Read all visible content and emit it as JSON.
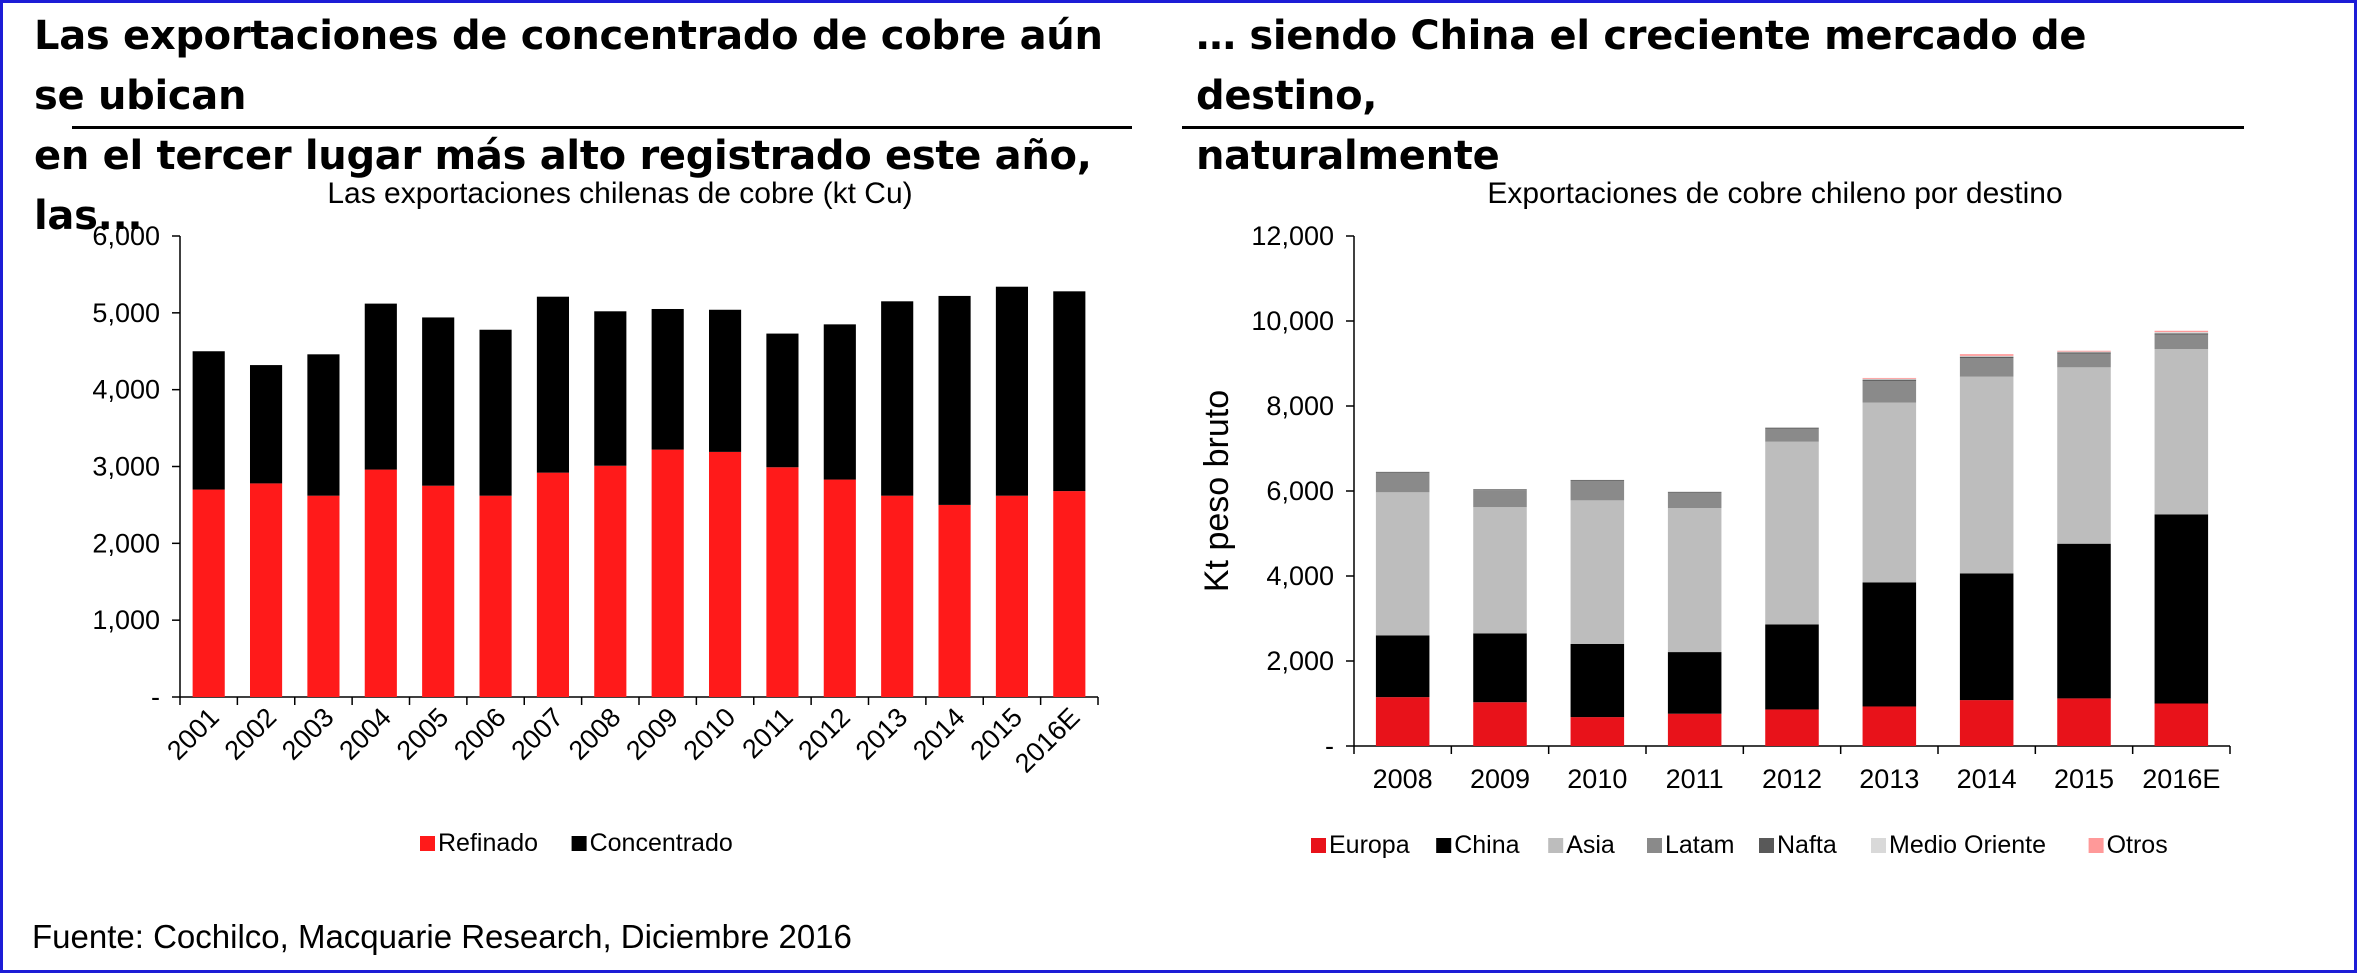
{
  "colors": {
    "frame": "#1c1cd6",
    "refinado": "#ff1a1a",
    "concentrado": "#000000",
    "europa": "#e8121a",
    "china": "#000000",
    "asia": "#bdbdbd",
    "latam": "#8a8a8a",
    "nafta": "#595959",
    "medio_oriente": "#d9d9d9",
    "otros": "#ff9999"
  },
  "left_panel": {
    "headline_line1": "Las exportaciones de concentrado de cobre aún se ubican",
    "headline_line2": "en el tercer lugar más alto registrado este año, las..."
  },
  "right_panel": {
    "headline_line1": "… siendo China el creciente mercado de destino,",
    "headline_line2": "naturalmente"
  },
  "footer": {
    "source": "Fuente: Cochilco, Macquarie Research, Diciembre 2016"
  },
  "chart_data": [
    {
      "type": "bar",
      "stacked": true,
      "title": "Las exportaciones chilenas de cobre (kt Cu)",
      "xlabel": "",
      "ylabel": "",
      "categories": [
        "2001",
        "2002",
        "2003",
        "2004",
        "2005",
        "2006",
        "2007",
        "2008",
        "2009",
        "2010",
        "2011",
        "2012",
        "2013",
        "2014",
        "2015",
        "2016E"
      ],
      "ylim": [
        0,
        6000
      ],
      "yticks": [
        "-",
        "1,000",
        "2,000",
        "3,000",
        "4,000",
        "5,000",
        "6,000"
      ],
      "grid": false,
      "legend_position": "bottom",
      "series": [
        {
          "name": "Refinado",
          "color": "#ff1a1a",
          "values": [
            2700,
            2780,
            2620,
            2960,
            2750,
            2620,
            2920,
            3010,
            3220,
            3190,
            2990,
            2830,
            2620,
            2500,
            2620,
            2680
          ]
        },
        {
          "name": "Concentrado",
          "color": "#000000",
          "values": [
            1800,
            1540,
            1840,
            2160,
            2190,
            2160,
            2290,
            2010,
            1830,
            1850,
            1740,
            2020,
            2530,
            2720,
            2720,
            2600
          ]
        }
      ]
    },
    {
      "type": "bar",
      "stacked": true,
      "title": "Exportaciones de cobre chileno por destino",
      "xlabel": "",
      "ylabel": "Kt peso bruto",
      "categories": [
        "2008",
        "2009",
        "2010",
        "2011",
        "2012",
        "2013",
        "2014",
        "2015",
        "2016E"
      ],
      "ylim": [
        0,
        12000
      ],
      "yticks": [
        "-",
        "2,000",
        "4,000",
        "6,000",
        "8,000",
        "10,000",
        "12,000"
      ],
      "grid": false,
      "legend_position": "bottom",
      "series": [
        {
          "name": "Europa",
          "color": "#e8121a",
          "values": [
            1150,
            1030,
            680,
            760,
            860,
            930,
            1080,
            1120,
            1000
          ]
        },
        {
          "name": "China",
          "color": "#000000",
          "values": [
            1450,
            1620,
            1720,
            1450,
            2000,
            2920,
            2980,
            3640,
            4450
          ]
        },
        {
          "name": "Asia",
          "color": "#bdbdbd",
          "values": [
            3370,
            2970,
            3380,
            3390,
            4300,
            4230,
            4630,
            4150,
            3890
          ]
        },
        {
          "name": "Latam",
          "color": "#8a8a8a",
          "values": [
            460,
            400,
            460,
            360,
            310,
            510,
            440,
            320,
            340
          ]
        },
        {
          "name": "Nafta",
          "color": "#595959",
          "values": [
            20,
            20,
            20,
            20,
            20,
            30,
            30,
            30,
            30
          ]
        },
        {
          "name": "Medio Oriente",
          "color": "#d9d9d9",
          "values": [
            0,
            0,
            0,
            0,
            0,
            20,
            20,
            20,
            30
          ]
        },
        {
          "name": "Otros",
          "color": "#ff9999",
          "values": [
            0,
            0,
            0,
            0,
            0,
            20,
            40,
            20,
            30
          ]
        }
      ]
    }
  ]
}
